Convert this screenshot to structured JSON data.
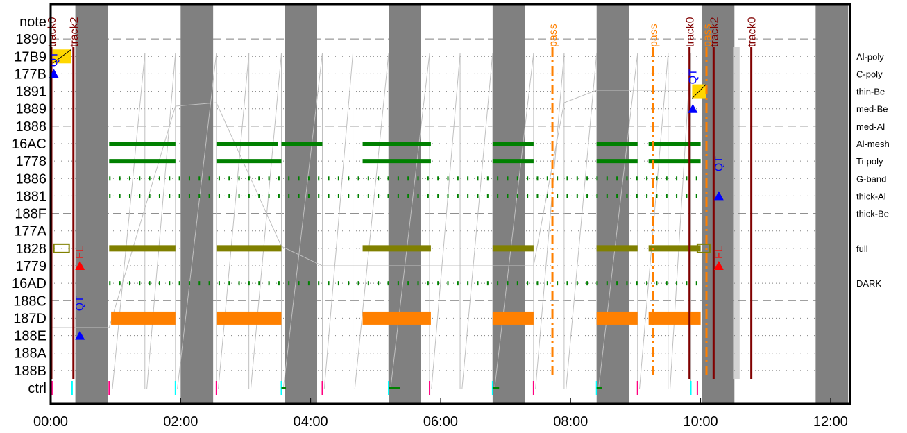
{
  "chart_data": {
    "type": "timeline",
    "x_unit": "hours",
    "xlim": [
      0,
      12.3
    ],
    "x_ticks": [
      {
        "value": 0,
        "label": "00:00"
      },
      {
        "value": 2,
        "label": "02:00"
      },
      {
        "value": 4,
        "label": "04:00"
      },
      {
        "value": 6,
        "label": "06:00"
      },
      {
        "value": 8,
        "label": "08:00"
      },
      {
        "value": 10,
        "label": "10:00"
      },
      {
        "value": 12,
        "label": "12:00"
      }
    ],
    "rows": [
      "note",
      "1890",
      "17B9",
      "177B",
      "1891",
      "1889",
      "1888",
      "16AC",
      "1778",
      "1886",
      "1881",
      "188F",
      "177A",
      "1828",
      "1779",
      "16AD",
      "188C",
      "187D",
      "188E",
      "188A",
      "188B",
      "ctrl"
    ],
    "dashed_rows": [
      "1890",
      "1888",
      "188F",
      "188C"
    ],
    "right_labels": [
      {
        "row": "17B9",
        "text": "Al-poly"
      },
      {
        "row": "177B",
        "text": "C-poly"
      },
      {
        "row": "1891",
        "text": "thin-Be"
      },
      {
        "row": "1889",
        "text": "med-Be"
      },
      {
        "row": "1888",
        "text": "med-Al"
      },
      {
        "row": "16AC",
        "text": "Al-mesh"
      },
      {
        "row": "1778",
        "text": "Ti-poly"
      },
      {
        "row": "1886",
        "text": "G-band"
      },
      {
        "row": "1881",
        "text": "thick-Al"
      },
      {
        "row": "188F",
        "text": "thick-Be"
      },
      {
        "row": "1828",
        "text": "full"
      },
      {
        "row": "16AD",
        "text": "DARK"
      }
    ],
    "gray_bands": [
      [
        0.28,
        0.9
      ],
      [
        2.52,
        2.88
      ],
      [
        3.57,
        3.93
      ],
      [
        5.57,
        5.93
      ],
      [
        7.57,
        7.93
      ],
      [
        9.57,
        9.93
      ],
      [
        11.77,
        12.3
      ]
    ],
    "gray_bands_rev": [],
    "shaded_intervals": [
      [
        0.3,
        0.9
      ],
      [
        1.92,
        2.55
      ],
      [
        3.55,
        4.18
      ],
      [
        5.2,
        5.83
      ],
      [
        6.8,
        7.43
      ],
      [
        8.4,
        9.03
      ],
      [
        10.2,
        10.82
      ],
      [
        11.77,
        12.3
      ]
    ],
    "light_band": [
      10.5,
      10.6
    ],
    "colors": {
      "olive": "#808000",
      "green": "#008000",
      "orange": "#ff8000",
      "darkred": "#800000",
      "gray": "#808080",
      "blue": "#0000ff",
      "red": "#ff0000",
      "yellow": "#ffd700"
    },
    "track_lines": [
      {
        "x": 0.0,
        "label": "track0",
        "color": "#800000"
      },
      {
        "x": 0.35,
        "label": "track2",
        "color": "#800000"
      },
      {
        "x": 9.83,
        "label": "track0",
        "color": "#800000"
      },
      {
        "x": 10.2,
        "label": "track2",
        "color": "#800000"
      },
      {
        "x": 10.78,
        "label": "track0",
        "color": "#800000"
      }
    ],
    "pass_lines": [
      {
        "x": 7.72,
        "label": "pass"
      },
      {
        "x": 9.27,
        "label": "pass"
      },
      {
        "x": 10.09,
        "label": "pass"
      }
    ],
    "markers": [
      {
        "x": 0.05,
        "row": "177B",
        "label": "QT",
        "color": "#0000ff",
        "label_row": "17B9"
      },
      {
        "x": 0.45,
        "row": "1779",
        "label": "FL",
        "color": "#ff0000",
        "label_row": "1828"
      },
      {
        "x": 0.45,
        "row": "188E",
        "label": "QT",
        "color": "#0000ff",
        "label_row": "188C"
      },
      {
        "x": 9.88,
        "row": "1889",
        "label": "QT",
        "color": "#0000ff",
        "label_row": "177B"
      },
      {
        "x": 10.28,
        "row": "1881",
        "label": "QT",
        "color": "#0000ff",
        "label_row": "1778"
      },
      {
        "x": 10.28,
        "row": "1779",
        "label": "FL",
        "color": "#ff0000",
        "label_row": "1828"
      }
    ],
    "series": [
      {
        "row": "16AC",
        "color": "#008000",
        "segments": [
          [
            0.9,
            1.92
          ],
          [
            2.55,
            3.5
          ],
          [
            3.55,
            4.18
          ],
          [
            4.8,
            5.85
          ],
          [
            6.8,
            7.43
          ],
          [
            8.4,
            9.03
          ],
          [
            9.2,
            10.0
          ]
        ]
      },
      {
        "row": "1778",
        "color": "#008000",
        "segments": [
          [
            0.9,
            1.92
          ],
          [
            2.55,
            3.55
          ],
          [
            4.8,
            5.85
          ],
          [
            6.8,
            7.43
          ],
          [
            8.4,
            9.03
          ],
          [
            9.2,
            10.0
          ]
        ]
      },
      {
        "row": "1828",
        "color": "#808000",
        "segments": [
          [
            0.9,
            1.92
          ],
          [
            2.55,
            3.55
          ],
          [
            4.8,
            5.85
          ],
          [
            6.8,
            7.43
          ],
          [
            8.4,
            9.03
          ],
          [
            9.2,
            10.0
          ]
        ]
      },
      {
        "row": "187D",
        "color": "#ff8000",
        "segments": [
          [
            0.93,
            1.92
          ],
          [
            2.55,
            3.55
          ],
          [
            4.8,
            5.85
          ],
          [
            6.8,
            7.43
          ],
          [
            8.4,
            9.03
          ],
          [
            9.2,
            10.0
          ]
        ]
      }
    ]
  }
}
